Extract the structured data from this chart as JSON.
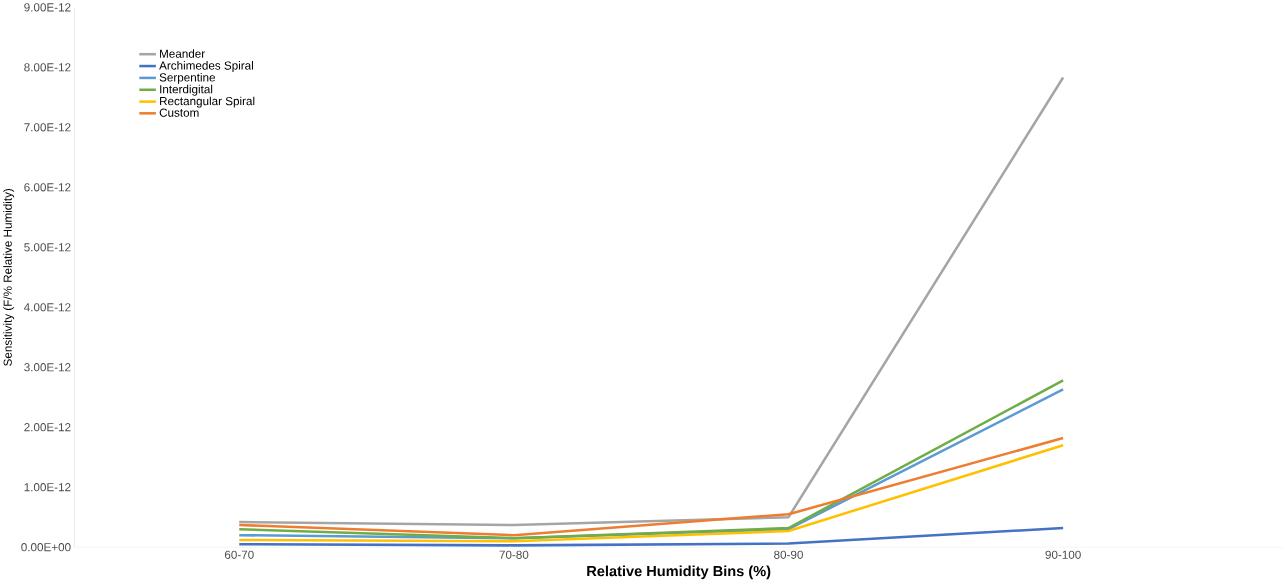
{
  "chart_data": {
    "type": "line",
    "xlabel": "Relative Humidity Bins (%)",
    "ylabel": "Sensitivity (F/% Relative Humidity)",
    "categories": [
      "60-70",
      "70-80",
      "80-90",
      "90-100"
    ],
    "ylim": [
      0,
      9e-12
    ],
    "yticks": [
      {
        "value": 0,
        "label": "0.00E+00"
      },
      {
        "value": 1e-12,
        "label": "1.00E-12"
      },
      {
        "value": 2e-12,
        "label": "2.00E-12"
      },
      {
        "value": 3e-12,
        "label": "3.00E-12"
      },
      {
        "value": 4e-12,
        "label": "4.00E-12"
      },
      {
        "value": 5e-12,
        "label": "5.00E-12"
      },
      {
        "value": 6e-12,
        "label": "6.00E-12"
      },
      {
        "value": 7e-12,
        "label": "7.00E-12"
      },
      {
        "value": 8e-12,
        "label": "8.00E-12"
      },
      {
        "value": 9e-12,
        "label": "9.00E-12"
      }
    ],
    "grid": false,
    "legend": "top left",
    "marker": "none",
    "line_style": "solid",
    "series": [
      {
        "name": "Meander",
        "color": "#a5a5a5",
        "values": [
          4.2e-13,
          3.7e-13,
          5e-13,
          7.83e-12
        ]
      },
      {
        "name": "Archimedes Spiral",
        "color": "#4472c4",
        "values": [
          5e-14,
          3e-14,
          6e-14,
          3.2e-13
        ]
      },
      {
        "name": "Serpentine",
        "color": "#5b9bd5",
        "values": [
          2e-13,
          1.5e-13,
          3e-13,
          2.63e-12
        ]
      },
      {
        "name": "Interdigital",
        "color": "#70ad47",
        "values": [
          3e-13,
          1.5e-13,
          3.2e-13,
          2.78e-12
        ]
      },
      {
        "name": "Rectangular Spiral",
        "color": "#ffc000",
        "values": [
          1.2e-13,
          1e-13,
          2.7e-13,
          1.7e-12
        ]
      },
      {
        "name": "Custom",
        "color": "#ed7d31",
        "values": [
          3.7e-13,
          2e-13,
          5.5e-13,
          1.82e-12
        ]
      }
    ]
  }
}
